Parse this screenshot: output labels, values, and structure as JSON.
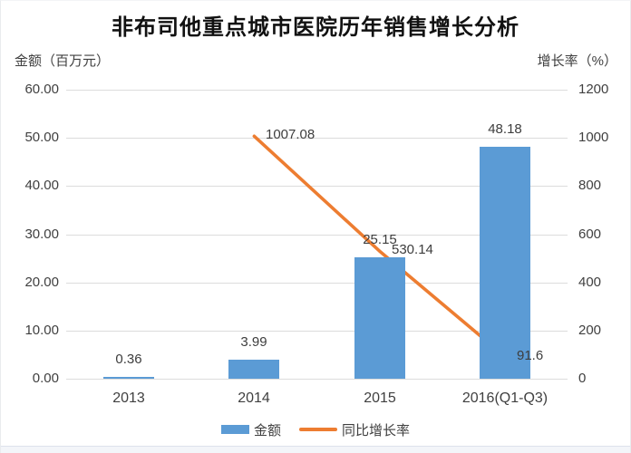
{
  "chart_data": {
    "type": "combo-bar-line",
    "title": "非布司他重点城市医院历年销售增长分析",
    "categories": [
      "2013",
      "2014",
      "2015",
      "2016(Q1-Q3)"
    ],
    "series": [
      {
        "name": "金额",
        "type": "bar",
        "axis": "left",
        "color": "#5B9BD5",
        "values": [
          0.36,
          3.99,
          25.15,
          48.18
        ],
        "labels": [
          "0.36",
          "3.99",
          "25.15",
          "48.18"
        ]
      },
      {
        "name": "同比增长率",
        "type": "line",
        "axis": "right",
        "color": "#ED7D31",
        "values": [
          null,
          1007.08,
          530.14,
          91.6
        ],
        "labels": [
          null,
          "1007.08",
          "530.14",
          "91.6"
        ]
      }
    ],
    "left_axis": {
      "title": "金额（百万元）",
      "min": 0,
      "max": 60,
      "ticks": [
        "60.00",
        "50.00",
        "40.00",
        "30.00",
        "20.00",
        "10.00",
        "0.00"
      ]
    },
    "right_axis": {
      "title": "增长率（%）",
      "min": 0,
      "max": 1200,
      "ticks": [
        "1200",
        "1000",
        "800",
        "600",
        "400",
        "200",
        "0"
      ]
    },
    "grid": true,
    "legend_position": "bottom"
  },
  "style": {
    "gridline_color": "#dcdcdc",
    "text_color": "#404040",
    "title_color": "#111111",
    "background": "#ffffff"
  }
}
